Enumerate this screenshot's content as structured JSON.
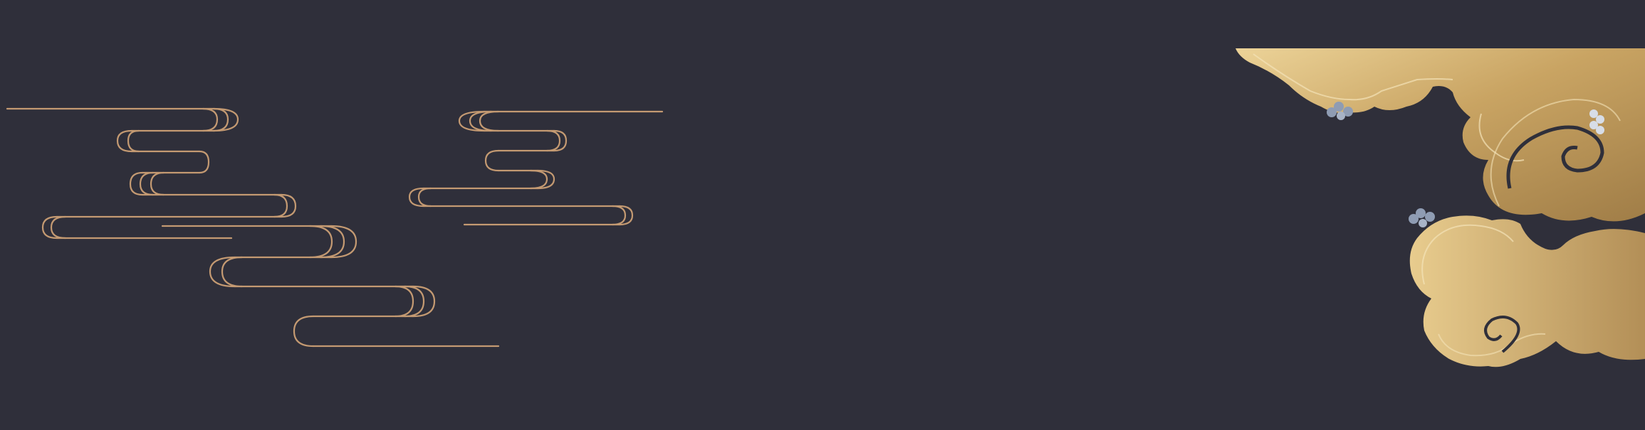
{
  "scene": {
    "background_color": "#2f2f3a",
    "line_cloud_color": "#c49a72",
    "gold_light": "#e6c98a",
    "gold_mid": "#c9a463",
    "gold_dark": "#9b7a45",
    "swirl_color": "#2f2f3a",
    "flower_color": "#8f9cb3",
    "elements": [
      "wave-cloud-left",
      "wave-cloud-center",
      "gold-cloud-right"
    ]
  }
}
